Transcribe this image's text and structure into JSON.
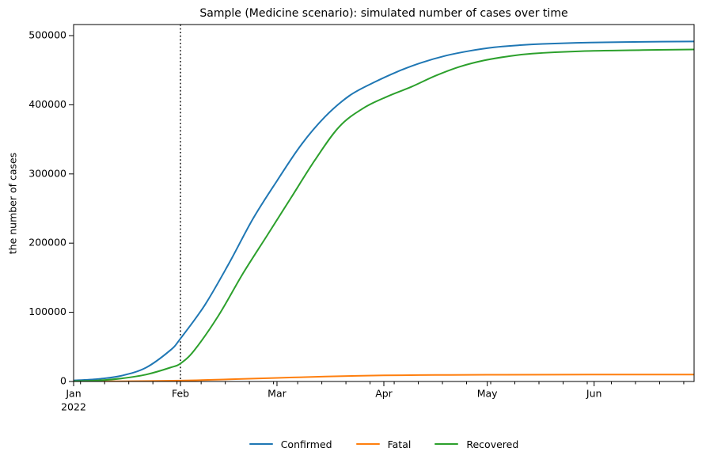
{
  "window": {
    "background": "#ffffff"
  },
  "chart_data": {
    "type": "line",
    "title": "Sample (Medicine scenario): simulated number of cases over time",
    "xlabel": "",
    "ylabel": "the number of cases",
    "grid": false,
    "x_axis": {
      "unit": "date",
      "year_sublabel": "2022",
      "xlim_days": [
        0,
        180
      ],
      "major_ticks": [
        {
          "day": 0,
          "label": "Jan"
        },
        {
          "day": 31,
          "label": "Feb"
        },
        {
          "day": 59,
          "label": "Mar"
        },
        {
          "day": 90,
          "label": "Apr"
        },
        {
          "day": 120,
          "label": "May"
        },
        {
          "day": 151,
          "label": "Jun"
        }
      ],
      "minor_tick_days": [
        2,
        9,
        16,
        23,
        30,
        37,
        44,
        51,
        58,
        65,
        72,
        79,
        86,
        93,
        100,
        107,
        114,
        121,
        128,
        135,
        142,
        149,
        156,
        163,
        170,
        177
      ]
    },
    "y_axis": {
      "ylim": [
        0,
        516000
      ],
      "ticks": [
        {
          "value": 0,
          "label": "0"
        },
        {
          "value": 100000,
          "label": "100000"
        },
        {
          "value": 200000,
          "label": "200000"
        },
        {
          "value": 300000,
          "label": "300000"
        },
        {
          "value": 400000,
          "label": "400000"
        },
        {
          "value": 500000,
          "label": "500000"
        }
      ]
    },
    "annotations": [
      {
        "type": "vline",
        "day": 31,
        "linestyle": "dotted",
        "color": "#000000"
      }
    ],
    "legend": {
      "position": "bottom-center-outside",
      "frame": false
    },
    "series": [
      {
        "name": "Confirmed",
        "color": "#1f77b4",
        "points": [
          [
            0,
            1500
          ],
          [
            7,
            3500
          ],
          [
            14,
            8500
          ],
          [
            21,
            20000
          ],
          [
            28,
            45000
          ],
          [
            31,
            62000
          ],
          [
            38,
            110000
          ],
          [
            45,
            170000
          ],
          [
            52,
            235000
          ],
          [
            59,
            290000
          ],
          [
            66,
            342000
          ],
          [
            73,
            383000
          ],
          [
            80,
            413000
          ],
          [
            87,
            432000
          ],
          [
            94,
            448000
          ],
          [
            101,
            461000
          ],
          [
            108,
            471000
          ],
          [
            115,
            478000
          ],
          [
            122,
            483000
          ],
          [
            129,
            486000
          ],
          [
            136,
            488000
          ],
          [
            150,
            490000
          ],
          [
            165,
            491000
          ],
          [
            180,
            491500
          ]
        ]
      },
      {
        "name": "Fatal",
        "color": "#ff7f0e",
        "points": [
          [
            0,
            100
          ],
          [
            14,
            400
          ],
          [
            31,
            1300
          ],
          [
            45,
            3200
          ],
          [
            59,
            5200
          ],
          [
            73,
            7100
          ],
          [
            90,
            8800
          ],
          [
            105,
            9400
          ],
          [
            120,
            9700
          ],
          [
            150,
            9900
          ],
          [
            180,
            10000
          ]
        ]
      },
      {
        "name": "Recovered",
        "color": "#2ca02c",
        "points": [
          [
            0,
            500
          ],
          [
            7,
            1500
          ],
          [
            14,
            4500
          ],
          [
            21,
            10000
          ],
          [
            28,
            20000
          ],
          [
            31,
            26000
          ],
          [
            35,
            45000
          ],
          [
            42,
            95000
          ],
          [
            49,
            155000
          ],
          [
            56,
            210000
          ],
          [
            63,
            265000
          ],
          [
            70,
            320000
          ],
          [
            77,
            368000
          ],
          [
            84,
            395000
          ],
          [
            91,
            412000
          ],
          [
            98,
            426000
          ],
          [
            105,
            442000
          ],
          [
            112,
            455000
          ],
          [
            119,
            464000
          ],
          [
            126,
            470000
          ],
          [
            133,
            474000
          ],
          [
            147,
            477500
          ],
          [
            165,
            479000
          ],
          [
            180,
            480000
          ]
        ]
      }
    ]
  }
}
